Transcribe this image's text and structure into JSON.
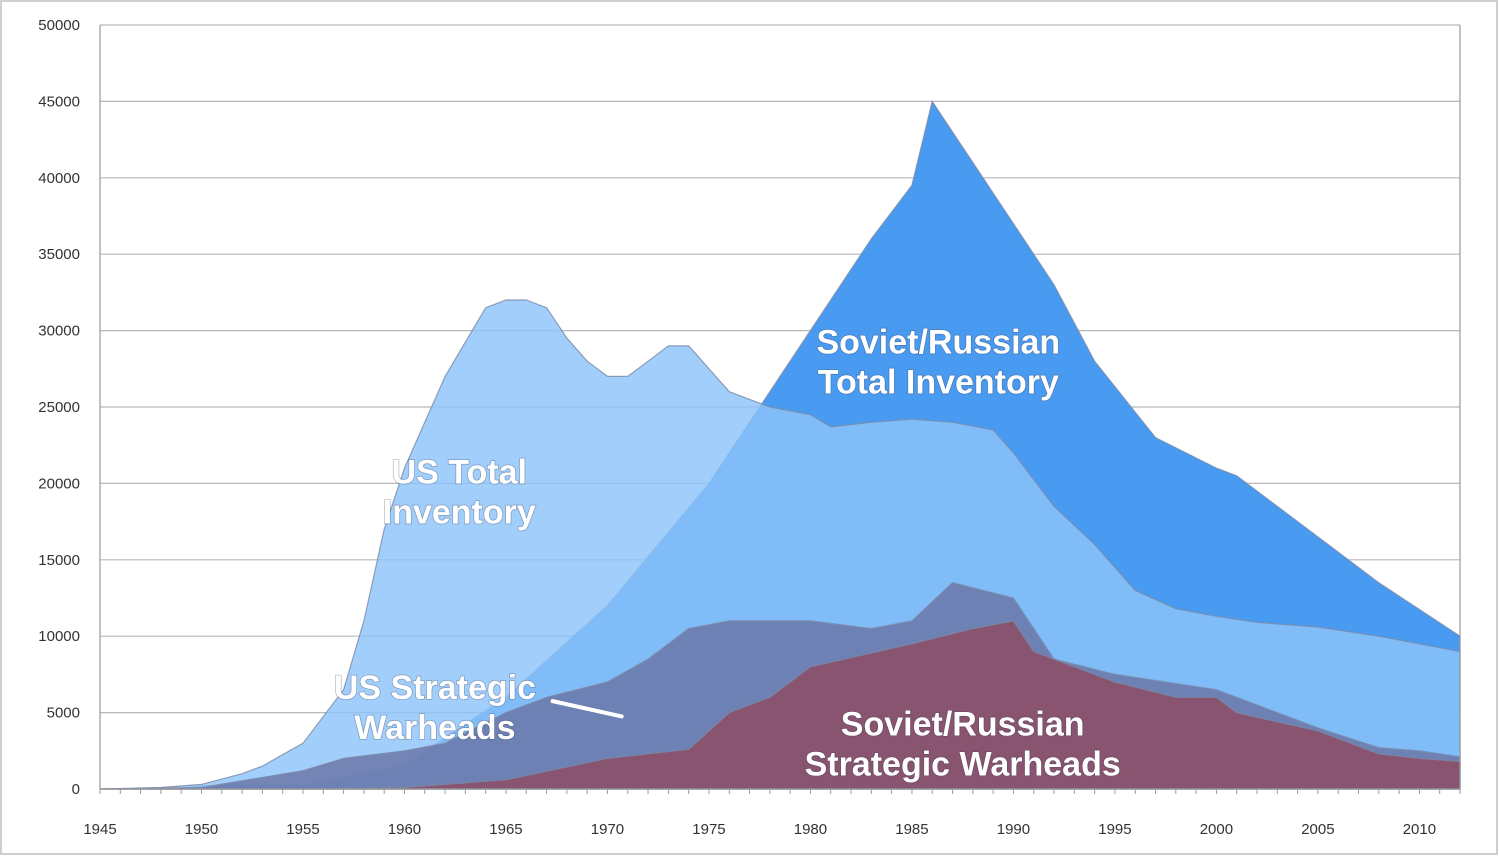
{
  "chart_data": {
    "type": "area",
    "title": "",
    "xlabel": "",
    "ylabel": "",
    "xlim": [
      1945,
      2012
    ],
    "ylim": [
      0,
      50000
    ],
    "x_ticks": [
      1945,
      1950,
      1955,
      1960,
      1965,
      1970,
      1975,
      1980,
      1985,
      1990,
      1995,
      2000,
      2005,
      2010
    ],
    "y_ticks": [
      0,
      5000,
      10000,
      15000,
      20000,
      25000,
      30000,
      35000,
      40000,
      45000,
      50000
    ],
    "grid": true,
    "legend": "none",
    "series": [
      {
        "name": "Soviet/Russian Total Inventory",
        "label_lines": [
          "Soviet/Russian",
          "Total Inventory"
        ],
        "label_at": [
          1986.3,
          28500
        ],
        "color": "#3f96f0",
        "x": [
          1945,
          1949,
          1950,
          1955,
          1960,
          1965,
          1970,
          1975,
          1980,
          1983,
          1985,
          1986,
          1988,
          1990,
          1992,
          1994,
          1997,
          2000,
          2001,
          2003,
          2005,
          2008,
          2012
        ],
        "y": [
          0,
          50,
          200,
          200,
          1600,
          6000,
          12000,
          20000,
          30000,
          36000,
          39500,
          45000,
          41000,
          37000,
          33000,
          28000,
          23000,
          21000,
          20500,
          18500,
          16500,
          13500,
          10000
        ]
      },
      {
        "name": "US Total Inventory",
        "label_lines": [
          "US Total",
          "Inventory"
        ],
        "label_at": [
          1962.7,
          20000
        ],
        "color": "#8cc3f9",
        "x": [
          1945,
          1948,
          1950,
          1952,
          1953,
          1955,
          1957,
          1958,
          1959,
          1960,
          1962,
          1964,
          1965,
          1966,
          1967,
          1968,
          1969,
          1970,
          1971,
          1972,
          1973,
          1974,
          1975,
          1976,
          1977,
          1978,
          1980,
          1981,
          1983,
          1985,
          1987,
          1989,
          1990,
          1992,
          1994,
          1996,
          1998,
          2000,
          2002,
          2005,
          2008,
          2010,
          2012
        ],
        "y": [
          0,
          100,
          300,
          1000,
          1500,
          3000,
          6500,
          11000,
          17000,
          21000,
          27000,
          31500,
          32000,
          32000,
          31500,
          29500,
          28000,
          27000,
          27000,
          28000,
          29000,
          29000,
          27500,
          26000,
          25500,
          25000,
          24500,
          23700,
          24000,
          24200,
          24000,
          23500,
          22000,
          18500,
          16000,
          13000,
          11800,
          11300,
          10900,
          10600,
          10000,
          9500,
          9000
        ]
      },
      {
        "name": "US Strategic Warheads",
        "label_lines": [
          "US Strategic",
          "Warheads"
        ],
        "label_at": [
          1961.5,
          5900
        ],
        "color": "#6a74a6",
        "x": [
          1945,
          1950,
          1955,
          1957,
          1960,
          1962,
          1965,
          1967,
          1970,
          1972,
          1974,
          1976,
          1980,
          1983,
          1985,
          1987,
          1990,
          1992,
          1995,
          2000,
          2005,
          2008,
          2010,
          2012
        ],
        "y": [
          0,
          100,
          1200,
          2000,
          2500,
          3000,
          5000,
          6000,
          7000,
          8500,
          10500,
          11000,
          11000,
          10500,
          11000,
          13500,
          12500,
          8500,
          7500,
          6500,
          4000,
          2700,
          2500,
          2100
        ]
      },
      {
        "name": "Soviet/Russian Strategic Warheads",
        "label_lines": [
          "Soviet/Russian",
          "Strategic Warheads"
        ],
        "label_at": [
          1987.5,
          3500
        ],
        "color": "#8d4a5f",
        "x": [
          1945,
          1955,
          1960,
          1965,
          1970,
          1974,
          1976,
          1978,
          1980,
          1985,
          1988,
          1990,
          1991,
          1993,
          1995,
          1998,
          2000,
          2001,
          2005,
          2008,
          2010,
          2012
        ],
        "y": [
          0,
          0,
          100,
          600,
          2000,
          2600,
          5000,
          6000,
          8000,
          9500,
          10500,
          11000,
          9000,
          8000,
          7000,
          6000,
          6000,
          5000,
          3800,
          2300,
          2000,
          1800
        ]
      }
    ]
  }
}
